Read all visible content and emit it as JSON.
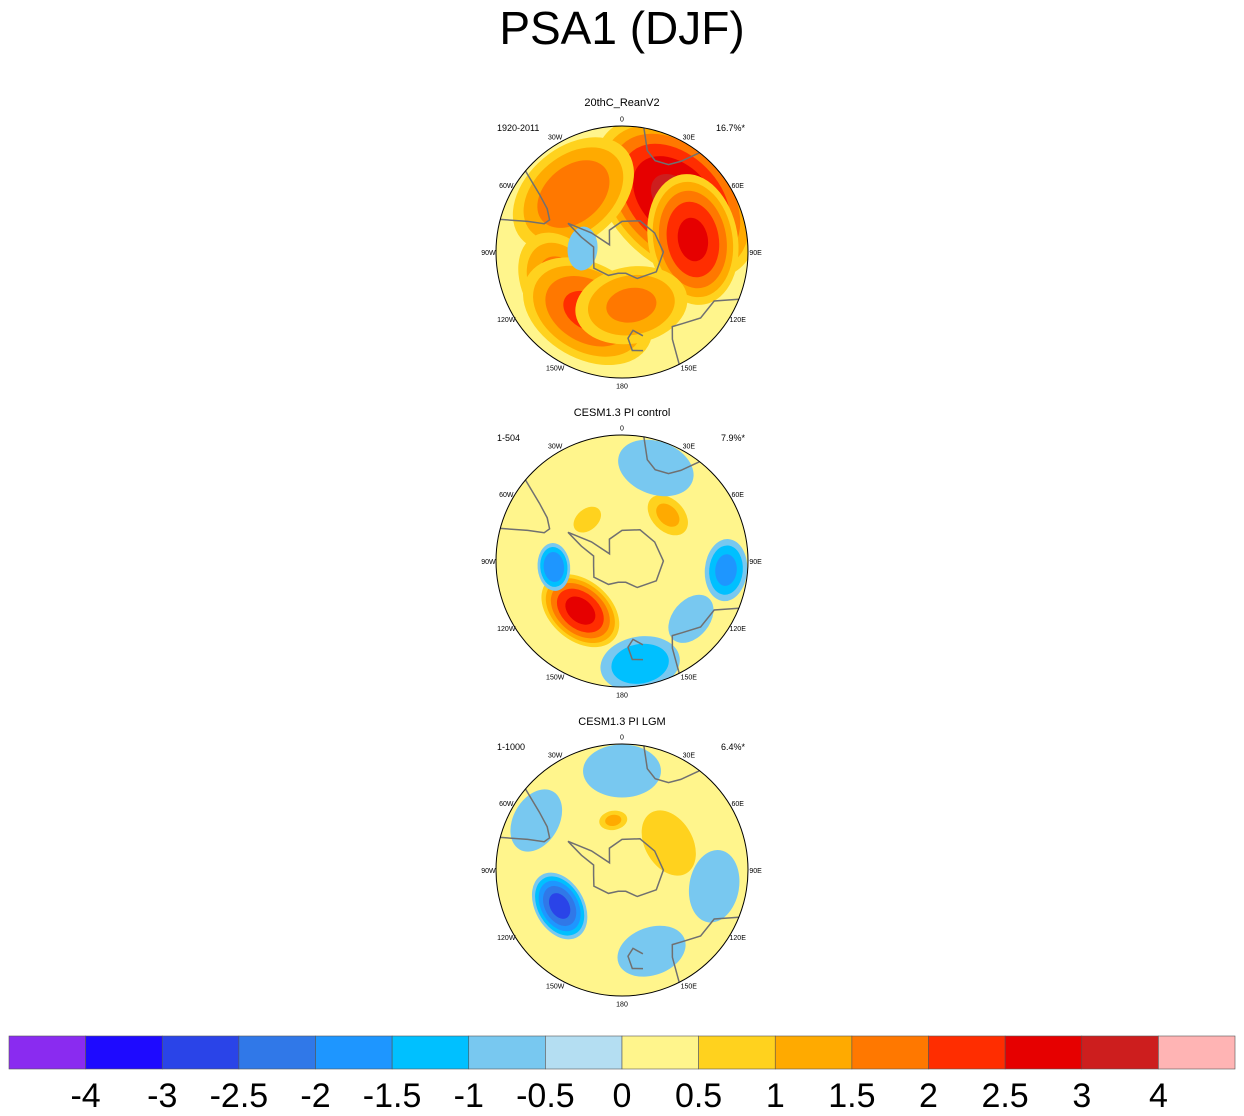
{
  "title": "PSA1 (DJF)",
  "chart_data": {
    "type": "heatmap",
    "title": "PSA1 (DJF)",
    "projection": "south-polar-stereographic",
    "panels": [
      {
        "name": "20thC_ReanV2",
        "period": "1920-2011",
        "variance": "16.7%*",
        "anomalies": [
          {
            "lon": 45,
            "colat": 42,
            "r": 34,
            "amp": 3.0,
            "sign": 1
          },
          {
            "lon": 80,
            "colat": 40,
            "r": 24,
            "amp": 2.5,
            "sign": 1
          },
          {
            "lon": -40,
            "colat": 42,
            "r": 26,
            "amp": 1.8,
            "sign": 1
          },
          {
            "lon": -120,
            "colat": 38,
            "r": 22,
            "amp": 1.7,
            "sign": 1
          },
          {
            "lon": -150,
            "colat": 38,
            "r": 26,
            "amp": 2.0,
            "sign": 1
          },
          {
            "lon": 170,
            "colat": 30,
            "r": 22,
            "amp": 1.5,
            "sign": 1
          },
          {
            "lon": -85,
            "colat": 22,
            "r": 10,
            "amp": 0.8,
            "sign": -1
          }
        ]
      },
      {
        "name": "CESM1.3 PI control",
        "period": "1-504",
        "variance": "7.9%*",
        "anomalies": [
          {
            "lon": -140,
            "colat": 36,
            "r": 16,
            "amp": 2.6,
            "sign": 1
          },
          {
            "lon": -95,
            "colat": 38,
            "r": 9,
            "amp": 1.9,
            "sign": -1
          },
          {
            "lon": 45,
            "colat": 36,
            "r": 10,
            "amp": 1.0,
            "sign": 1
          },
          {
            "lon": -40,
            "colat": 30,
            "r": 8,
            "amp": 0.6,
            "sign": 1
          },
          {
            "lon": 95,
            "colat": 58,
            "r": 12,
            "amp": 1.6,
            "sign": -1
          },
          {
            "lon": 170,
            "colat": 58,
            "r": 16,
            "amp": 1.3,
            "sign": -1
          },
          {
            "lon": 20,
            "colat": 55,
            "r": 20,
            "amp": 0.6,
            "sign": -1
          },
          {
            "lon": 130,
            "colat": 50,
            "r": 14,
            "amp": 0.6,
            "sign": -1
          }
        ]
      },
      {
        "name": "CESM1.3 PI LGM",
        "period": "1-1000",
        "variance": "6.4%*",
        "anomalies": [
          {
            "lon": -120,
            "colat": 40,
            "r": 13,
            "amp": 2.6,
            "sign": -1
          },
          {
            "lon": -10,
            "colat": 28,
            "r": 6,
            "amp": 1.0,
            "sign": 1
          },
          {
            "lon": 100,
            "colat": 52,
            "r": 16,
            "amp": 0.9,
            "sign": -1
          },
          {
            "lon": 160,
            "colat": 48,
            "r": 16,
            "amp": 0.8,
            "sign": -1
          },
          {
            "lon": -60,
            "colat": 55,
            "r": 16,
            "amp": 0.7,
            "sign": -1
          },
          {
            "lon": 0,
            "colat": 55,
            "r": 20,
            "amp": 0.6,
            "sign": -1
          },
          {
            "lon": 60,
            "colat": 30,
            "r": 18,
            "amp": 0.6,
            "sign": 1
          }
        ]
      }
    ],
    "lon_labels": [
      "0",
      "30E",
      "60E",
      "90E",
      "120E",
      "150E",
      "180",
      "150W",
      "120W",
      "90W",
      "60W",
      "30W"
    ],
    "lon_values": [
      0,
      30,
      60,
      90,
      120,
      150,
      180,
      -150,
      -120,
      -90,
      -60,
      -30
    ],
    "colorbar": {
      "labels": [
        "-4",
        "-3",
        "-2.5",
        "-2",
        "-1.5",
        "-1",
        "-0.5",
        "0",
        "0.5",
        "1",
        "1.5",
        "2",
        "2.5",
        "3",
        "4"
      ],
      "boundaries": [
        -4,
        -3,
        -2.5,
        -2,
        -1.5,
        -1,
        -0.5,
        0,
        0.5,
        1,
        1.5,
        2,
        2.5,
        3,
        4
      ],
      "colors": [
        "#8a2bf0",
        "#1e0aff",
        "#2a44e8",
        "#3078e8",
        "#1e96ff",
        "#00c0ff",
        "#78c8f0",
        "#b4def2",
        "#fff58c",
        "#ffd21e",
        "#ffaa00",
        "#ff7800",
        "#ff2d00",
        "#e60000",
        "#cd1e1e",
        "#ffb4b4"
      ]
    }
  }
}
